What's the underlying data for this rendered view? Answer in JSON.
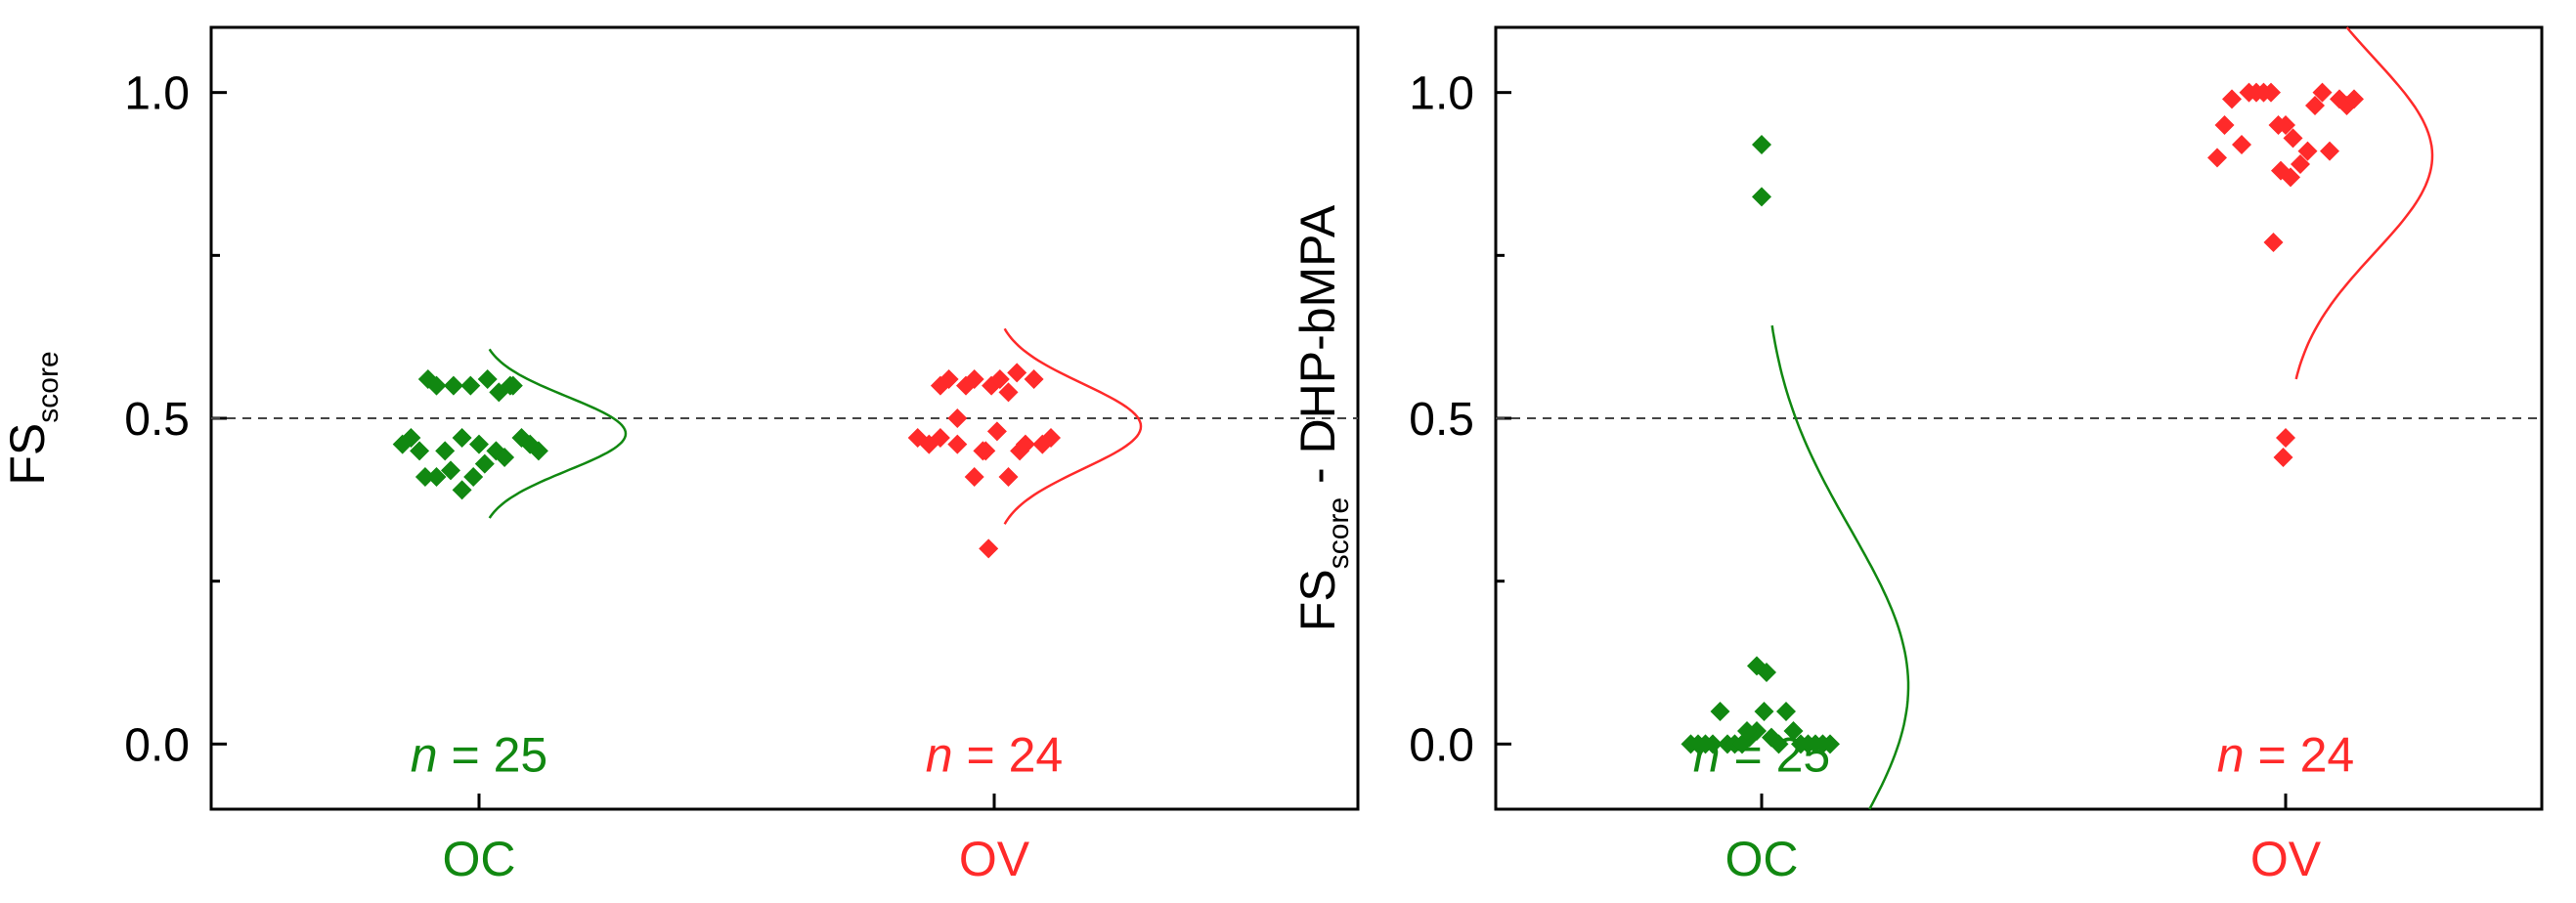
{
  "chart_data": [
    {
      "type": "scatter",
      "panel": "left",
      "ylabel_main": "FS",
      "ylabel_sub": "score",
      "ylabel_suffix": "",
      "ylim": [
        -0.1,
        1.1
      ],
      "yticks": [
        "0.0",
        "0.5",
        "1.0"
      ],
      "ytick_values": [
        0.0,
        0.5,
        1.0
      ],
      "reference_line": 0.5,
      "categories": [
        "OC",
        "OV"
      ],
      "series": [
        {
          "name": "OC",
          "color": "#118811",
          "count_italic": "n",
          "count_rest": " = 25",
          "x": [
            -0.27,
            -0.24,
            -0.21,
            -0.18,
            -0.15,
            -0.12,
            -0.09,
            -0.06,
            -0.03,
            0.0,
            0.03,
            0.06,
            0.09,
            0.12,
            0.15,
            0.18,
            0.21,
            -0.19,
            -0.15,
            -0.1,
            -0.06,
            -0.02,
            0.02,
            0.07,
            0.11
          ],
          "values": [
            0.46,
            0.47,
            0.45,
            0.56,
            0.55,
            0.45,
            0.55,
            0.47,
            0.55,
            0.46,
            0.56,
            0.45,
            0.44,
            0.55,
            0.47,
            0.46,
            0.45,
            0.41,
            0.41,
            0.42,
            0.39,
            0.41,
            0.43,
            0.54,
            0.55
          ]
        },
        {
          "name": "OV",
          "color": "#ff2a2a",
          "count_italic": "n",
          "count_rest": " = 24",
          "x": [
            -0.27,
            -0.23,
            -0.19,
            -0.16,
            -0.13,
            -0.1,
            -0.07,
            -0.04,
            -0.01,
            0.02,
            0.05,
            0.08,
            0.11,
            0.14,
            0.17,
            0.2,
            -0.19,
            -0.13,
            -0.07,
            -0.03,
            0.01,
            0.05,
            0.09,
            -0.02
          ],
          "values": [
            0.47,
            0.46,
            0.47,
            0.56,
            0.46,
            0.55,
            0.56,
            0.45,
            0.55,
            0.56,
            0.54,
            0.57,
            0.46,
            0.56,
            0.46,
            0.47,
            0.55,
            0.5,
            0.41,
            0.45,
            0.48,
            0.41,
            0.45,
            0.3
          ]
        }
      ]
    },
    {
      "type": "scatter",
      "panel": "right",
      "ylabel_main": "FS",
      "ylabel_sub": "score",
      "ylabel_suffix": " - DHP-bMPA",
      "ylim": [
        -0.1,
        1.1
      ],
      "yticks": [
        "0.0",
        "0.5",
        "1.0"
      ],
      "ytick_values": [
        0.0,
        0.5,
        1.0
      ],
      "reference_line": 0.5,
      "categories": [
        "OC",
        "OV"
      ],
      "series": [
        {
          "name": "OC",
          "color": "#118811",
          "count_italic": "n",
          "count_rest": " = 25",
          "x": [
            -0.29,
            -0.26,
            -0.23,
            -0.2,
            -0.17,
            -0.14,
            -0.11,
            -0.08,
            -0.05,
            -0.02,
            0.01,
            0.04,
            0.07,
            0.1,
            0.13,
            0.16,
            0.19,
            0.22,
            0.25,
            0.28,
            -0.06,
            -0.02,
            0.02,
            0.0,
            0.0
          ],
          "values": [
            0.0,
            0.0,
            0.0,
            0.0,
            0.05,
            0.0,
            0.0,
            0.0,
            0.01,
            0.02,
            0.05,
            0.01,
            0.0,
            0.05,
            0.02,
            0.0,
            0.0,
            0.0,
            0.0,
            0.0,
            0.02,
            0.12,
            0.11,
            0.84,
            0.92
          ]
        },
        {
          "name": "OV",
          "color": "#ff2a2a",
          "count_italic": "n",
          "count_rest": " = 24",
          "x": [
            -0.28,
            -0.25,
            -0.22,
            -0.18,
            -0.15,
            -0.12,
            -0.09,
            -0.06,
            -0.03,
            0.0,
            0.03,
            0.06,
            0.09,
            0.12,
            0.15,
            0.18,
            0.22,
            0.25,
            0.28,
            -0.02,
            0.02,
            0.0,
            -0.01,
            -0.05
          ],
          "values": [
            0.9,
            0.95,
            0.99,
            0.92,
            1.0,
            1.0,
            1.0,
            1.0,
            0.95,
            0.95,
            0.93,
            0.89,
            0.91,
            0.98,
            1.0,
            0.91,
            0.99,
            0.98,
            0.99,
            0.88,
            0.87,
            0.47,
            0.44,
            0.77
          ]
        }
      ]
    }
  ]
}
